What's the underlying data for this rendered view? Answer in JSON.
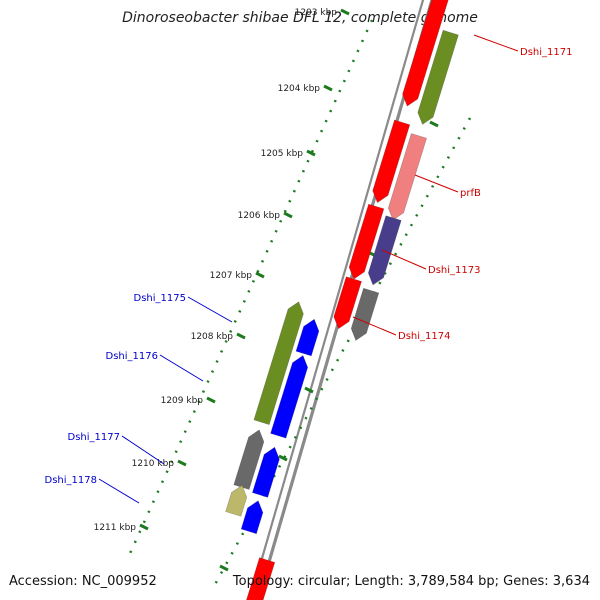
{
  "title": "Dinoroseobacter shibae DFL 12, complete genome",
  "footer": {
    "accession": "Accession: NC_009952",
    "topology": "Topology: circular; Length: 3,789,584 bp; Genes: 3,634"
  },
  "colors": {
    "backbone": "#8a8a8a",
    "tick_ruler": "#1e7a1e",
    "label_forward": "#cc0000",
    "label_reverse": "#0000cc"
  },
  "ruler_labels": [
    "1203 kbp",
    "1204 kbp",
    "1205 kbp",
    "1206 kbp",
    "1207 kbp",
    "1208 kbp",
    "1209 kbp",
    "1210 kbp",
    "1211 kbp"
  ],
  "genes": [
    {
      "id": "g-1171a",
      "track": "outer",
      "color": "#ff0000",
      "label": "Dshi_1171"
    },
    {
      "id": "g-1171b",
      "track": "outer-2",
      "color": "#6b8e23",
      "label": ""
    },
    {
      "id": "g-1172",
      "track": "outer",
      "color": "#ff0000",
      "label": ""
    },
    {
      "id": "g-prfB",
      "track": "outer-2",
      "color": "#f08080",
      "label": "prfB"
    },
    {
      "id": "g-1173a",
      "track": "outer",
      "color": "#ff0000",
      "label": ""
    },
    {
      "id": "g-1173b",
      "track": "outer-2",
      "color": "#483d8b",
      "label": "Dshi_1173"
    },
    {
      "id": "g-1174a",
      "track": "outer",
      "color": "#ff0000",
      "label": ""
    },
    {
      "id": "g-1174b",
      "track": "outer-2",
      "color": "#696969",
      "label": "Dshi_1174"
    },
    {
      "id": "g-1175",
      "track": "inner-2",
      "color": "#6b8e23",
      "label": "Dshi_1175"
    },
    {
      "id": "g-1175b",
      "track": "inner",
      "color": "#0000ff",
      "label": ""
    },
    {
      "id": "g-1176",
      "track": "inner",
      "color": "#0000ff",
      "label": "Dshi_1176"
    },
    {
      "id": "g-1177",
      "track": "inner-2",
      "color": "#696969",
      "label": "Dshi_1177"
    },
    {
      "id": "g-1177b",
      "track": "inner",
      "color": "#0000ff",
      "label": ""
    },
    {
      "id": "g-1178",
      "track": "inner-2",
      "color": "#bdb76b",
      "label": "Dshi_1178"
    },
    {
      "id": "g-1178b",
      "track": "inner",
      "color": "#0000ff",
      "label": ""
    },
    {
      "id": "g-bottom",
      "track": "outer",
      "color": "#ff0000",
      "label": ""
    }
  ]
}
